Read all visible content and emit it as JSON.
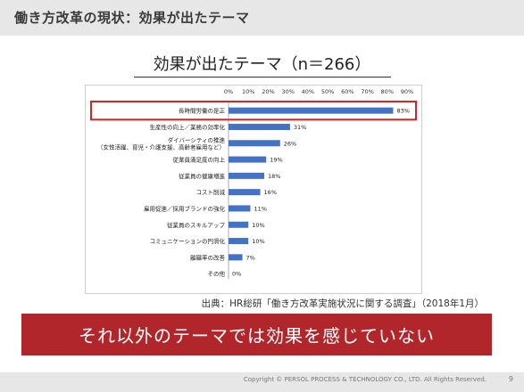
{
  "header": {
    "title": "働き方改革の現状：効果が出たテーマ"
  },
  "subtitle": "効果が出たテーマ（n＝266）",
  "source": "出典：HR総研「働き方改革実施状況に関する調査」（2018年1月）",
  "banner": "それ以外のテーマでは効果を感じていない",
  "footer": {
    "copyright": "Copyright © PERSOL PROCESS & TECHNOLOGY CO., LTD. All Rights Reserved.",
    "page_number": "9"
  },
  "colors": {
    "bar": "#4472c4",
    "highlight": "#e02020",
    "banner": "#b0262a",
    "header": "#e7e7e7"
  },
  "chart_data": {
    "type": "bar",
    "orientation": "horizontal",
    "title": "",
    "xlabel": "",
    "ylabel": "",
    "xlim": [
      0,
      90
    ],
    "xticks": [
      "0%",
      "10%",
      "20%",
      "30%",
      "40%",
      "50%",
      "60%",
      "70%",
      "80%",
      "90%"
    ],
    "tick_axis_position": "top",
    "grid": false,
    "highlighted_category": "長時間労働の是正",
    "categories": [
      [
        "長時間労働の是正"
      ],
      [
        "生産性の向上／業務の効率化"
      ],
      [
        "ダイバーシティの推進",
        "（女性活躍、育児・介護支援、高齢者雇用など）"
      ],
      [
        "従業員満足度の向上"
      ],
      [
        "従業員の健康増進"
      ],
      [
        "コスト削減"
      ],
      [
        "雇用促進／採用ブランドの強化"
      ],
      [
        "従業員のスキルアップ"
      ],
      [
        "コミュニケーションの円滑化"
      ],
      [
        "離職率の改善"
      ],
      [
        "その他"
      ]
    ],
    "values": [
      83,
      31,
      26,
      19,
      18,
      16,
      11,
      10,
      10,
      7,
      0
    ],
    "value_labels": [
      "83%",
      "31%",
      "26%",
      "19%",
      "18%",
      "16%",
      "11%",
      "10%",
      "10%",
      "7%",
      "0%"
    ]
  }
}
